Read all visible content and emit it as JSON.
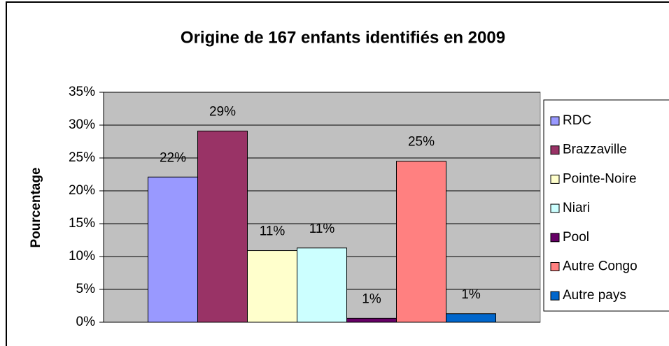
{
  "chart_data": {
    "type": "bar",
    "title": "Origine de 167 enfants identifiés en 2009",
    "y_label": "Pourcentage",
    "categories": [
      null
    ],
    "series": [
      {
        "name": "RDC",
        "color": "#9999ff",
        "values": [
          22.1
        ],
        "value_labels": [
          "22%"
        ]
      },
      {
        "name": "Brazzaville",
        "color": "#993366",
        "values": [
          29.1
        ],
        "value_labels": [
          "29%"
        ]
      },
      {
        "name": "Pointe-Noire",
        "color": "#ffffcc",
        "values": [
          10.9
        ],
        "value_labels": [
          "11%"
        ]
      },
      {
        "name": "Niari",
        "color": "#ccffff",
        "values": [
          11.3
        ],
        "value_labels": [
          "11%"
        ]
      },
      {
        "name": "Pool",
        "color": "#660066",
        "values": [
          0.6
        ],
        "value_labels": [
          "1%"
        ]
      },
      {
        "name": "Autre Congo",
        "color": "#ff8080",
        "values": [
          24.5
        ],
        "value_labels": [
          "25%"
        ]
      },
      {
        "name": "Autre pays",
        "color": "#0066cc",
        "values": [
          1.3
        ],
        "value_labels": [
          "1%"
        ]
      }
    ],
    "ylim": [
      0,
      35
    ],
    "yticks": [
      {
        "value": 0,
        "label": "0%"
      },
      {
        "value": 5,
        "label": "5%"
      },
      {
        "value": 10,
        "label": "10%"
      },
      {
        "value": 15,
        "label": "15%"
      },
      {
        "value": 20,
        "label": "20%"
      },
      {
        "value": 25,
        "label": "25%"
      },
      {
        "value": 30,
        "label": "30%"
      },
      {
        "value": 35,
        "label": "35%"
      }
    ],
    "grid": true,
    "legend": "right"
  }
}
